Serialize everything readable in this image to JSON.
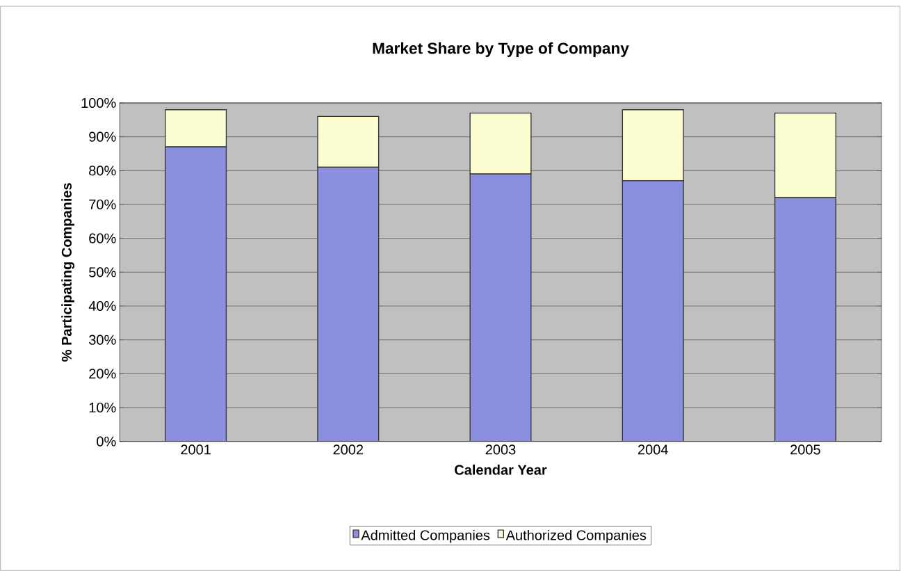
{
  "chart_data": {
    "type": "bar",
    "title": "Market Share by Type of Company",
    "xlabel": "Calendar Year",
    "ylabel": "% Participating Companies",
    "categories": [
      "2001",
      "2002",
      "2003",
      "2004",
      "2005"
    ],
    "series": [
      {
        "name": "Admitted Companies",
        "color": "#8b8fe0",
        "values": [
          87,
          81,
          79,
          77,
          72
        ]
      },
      {
        "name": "Authorized Companies",
        "color": "#fbfdd0",
        "values": [
          11,
          15,
          18,
          21,
          25
        ]
      }
    ],
    "stacked": true,
    "ylim": [
      0,
      100
    ],
    "yticks": [
      {
        "value": 0,
        "label": "0%"
      },
      {
        "value": 10,
        "label": "10%"
      },
      {
        "value": 20,
        "label": "20%"
      },
      {
        "value": 30,
        "label": "30%"
      },
      {
        "value": 40,
        "label": "40%"
      },
      {
        "value": 50,
        "label": "50%"
      },
      {
        "value": 60,
        "label": "60%"
      },
      {
        "value": 70,
        "label": "70%"
      },
      {
        "value": 80,
        "label": "80%"
      },
      {
        "value": 90,
        "label": "90%"
      },
      {
        "value": 100,
        "label": "100%"
      }
    ],
    "grid": "y",
    "legend": "bottom"
  }
}
